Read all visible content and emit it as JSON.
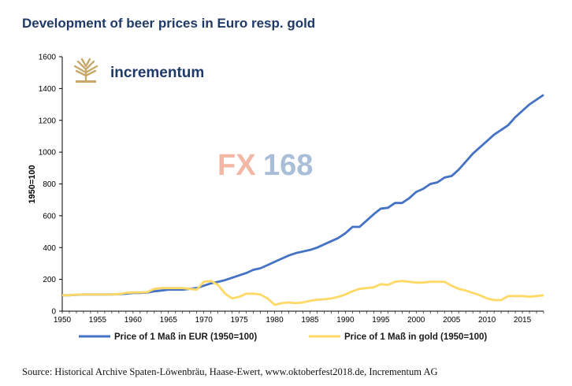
{
  "title": "Development of beer prices in Euro resp. gold",
  "source": "Source: Historical Archive Spaten-Löwenbräu, Haase-Ewert, www.oktoberfest2018.de, Incrementum AG",
  "brand": {
    "name": "incrementum",
    "icon": "tree-logo-icon",
    "color": "#c8a96a"
  },
  "watermark": {
    "prefix": "FX",
    "suffix": "168"
  },
  "colors": {
    "eur": "#4472c4",
    "gold": "#ffd966",
    "title": "#1f3a68"
  },
  "chart_data": {
    "type": "line",
    "title": "Development of beer prices in Euro resp. gold",
    "xlabel": "",
    "ylabel": "1950=100",
    "xlim": [
      1950,
      2018
    ],
    "ylim": [
      0,
      1600
    ],
    "xticks": [
      1950,
      1955,
      1960,
      1965,
      1970,
      1975,
      1980,
      1985,
      1990,
      1995,
      2000,
      2005,
      2010,
      2015
    ],
    "yticks": [
      0,
      200,
      400,
      600,
      800,
      1000,
      1200,
      1400,
      1600
    ],
    "grid": false,
    "legend": "bottom",
    "series": [
      {
        "name": "Price of 1 Maß in EUR (1950=100)",
        "color": "#4472c4",
        "x": [
          1950,
          1951,
          1952,
          1953,
          1954,
          1955,
          1956,
          1957,
          1958,
          1959,
          1960,
          1961,
          1962,
          1963,
          1964,
          1965,
          1966,
          1967,
          1968,
          1969,
          1970,
          1971,
          1972,
          1973,
          1974,
          1975,
          1976,
          1977,
          1978,
          1979,
          1980,
          1981,
          1982,
          1983,
          1984,
          1985,
          1986,
          1987,
          1988,
          1989,
          1990,
          1991,
          1992,
          1993,
          1994,
          1995,
          1996,
          1997,
          1998,
          1999,
          2000,
          2001,
          2002,
          2003,
          2004,
          2005,
          2006,
          2007,
          2008,
          2009,
          2010,
          2011,
          2012,
          2013,
          2014,
          2015,
          2016,
          2017,
          2018
        ],
        "values": [
          100,
          100,
          103,
          105,
          105,
          105,
          105,
          105,
          107,
          110,
          115,
          115,
          117,
          125,
          130,
          135,
          135,
          135,
          140,
          145,
          160,
          175,
          185,
          195,
          210,
          225,
          240,
          260,
          270,
          290,
          310,
          330,
          350,
          365,
          375,
          385,
          400,
          420,
          440,
          460,
          490,
          530,
          530,
          570,
          610,
          645,
          650,
          680,
          680,
          710,
          750,
          770,
          800,
          810,
          840,
          850,
          890,
          940,
          990,
          1030,
          1070,
          1110,
          1140,
          1170,
          1220,
          1260,
          1300,
          1330,
          1360
        ]
      },
      {
        "name": "Price of 1 Maß in gold (1950=100)",
        "color": "#ffd966",
        "x": [
          1950,
          1951,
          1952,
          1953,
          1954,
          1955,
          1956,
          1957,
          1958,
          1959,
          1960,
          1961,
          1962,
          1963,
          1964,
          1965,
          1966,
          1967,
          1968,
          1969,
          1970,
          1971,
          1972,
          1973,
          1974,
          1975,
          1976,
          1977,
          1978,
          1979,
          1980,
          1981,
          1982,
          1983,
          1984,
          1985,
          1986,
          1987,
          1988,
          1989,
          1990,
          1991,
          1992,
          1993,
          1994,
          1995,
          1996,
          1997,
          1998,
          1999,
          2000,
          2001,
          2002,
          2003,
          2004,
          2005,
          2006,
          2007,
          2008,
          2009,
          2010,
          2011,
          2012,
          2013,
          2014,
          2015,
          2016,
          2017,
          2018
        ],
        "values": [
          100,
          100,
          104,
          105,
          105,
          105,
          105,
          105,
          108,
          115,
          118,
          118,
          120,
          140,
          145,
          145,
          145,
          145,
          140,
          135,
          185,
          190,
          165,
          110,
          80,
          90,
          110,
          110,
          105,
          80,
          40,
          50,
          55,
          50,
          55,
          65,
          72,
          75,
          80,
          90,
          105,
          125,
          140,
          145,
          150,
          170,
          165,
          185,
          190,
          185,
          180,
          180,
          185,
          185,
          185,
          160,
          140,
          130,
          115,
          100,
          80,
          70,
          70,
          95,
          95,
          95,
          90,
          95,
          100
        ]
      }
    ]
  }
}
